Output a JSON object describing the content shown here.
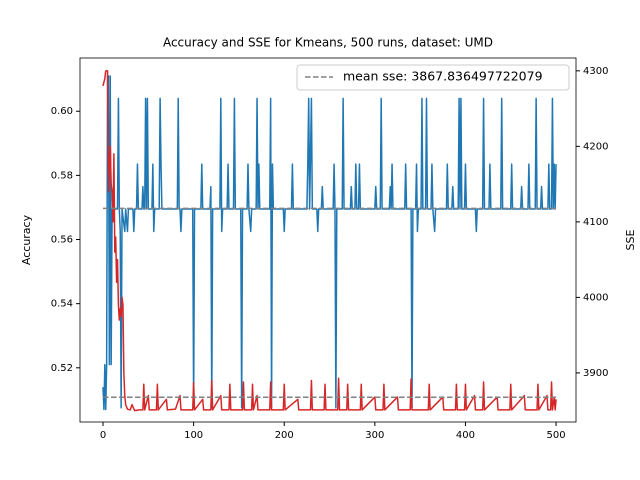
{
  "chart_data": {
    "type": "line",
    "title": "Accuracy and SSE for Kmeans, 500 runs, dataset: UMD",
    "ylabel": "Accuracy",
    "y2label": "SSE",
    "xlim": [
      -25.4,
      522
    ],
    "xticks": [
      0,
      100,
      200,
      300,
      400,
      500
    ],
    "ylim": [
      0.5031,
      0.6166
    ],
    "yticks": [
      0.52,
      0.54,
      0.56,
      0.58,
      {
        "value": 0.6,
        "label": "0.60"
      }
    ],
    "y2lim": [
      3835,
      4317
    ],
    "y2ticks": [
      3900,
      4000,
      4100,
      4200,
      4300
    ],
    "series": [
      {
        "color": "#1f77b4",
        "x": [
          0,
          1,
          2,
          3,
          4,
          5,
          6,
          7,
          8,
          9,
          10,
          16,
          17,
          18,
          19,
          20,
          21,
          24,
          25,
          27,
          28,
          33,
          34,
          35,
          37,
          38,
          39,
          43,
          44,
          45,
          46,
          47,
          48,
          49,
          50,
          54,
          55,
          56,
          57,
          62,
          63,
          64,
          65,
          82,
          83,
          84,
          85,
          86,
          87,
          99,
          100,
          101,
          108,
          109,
          110,
          118,
          119,
          120,
          121,
          129,
          130,
          131,
          132,
          137,
          138,
          139,
          144,
          145,
          146,
          152,
          153,
          154,
          159,
          160,
          161,
          163,
          164,
          169,
          170,
          171,
          172,
          173,
          184,
          185,
          186,
          187,
          188,
          199,
          200,
          201,
          208,
          209,
          210,
          225,
          226,
          227,
          228,
          230,
          231,
          236,
          237,
          238,
          241,
          242,
          243,
          254,
          255,
          256,
          257,
          258,
          264,
          265,
          266,
          273,
          274,
          275,
          278,
          279,
          280,
          282,
          283,
          284,
          300,
          301,
          302,
          306,
          307,
          308,
          316,
          317,
          318,
          319,
          320,
          333,
          334,
          335,
          340,
          341,
          342,
          345,
          346,
          347,
          348,
          351,
          352,
          353,
          356,
          357,
          358,
          362,
          363,
          364,
          366,
          367,
          379,
          380,
          381,
          385,
          386,
          387,
          392,
          393,
          394,
          395,
          396,
          399,
          400,
          401,
          411,
          412,
          413,
          419,
          420,
          421,
          426,
          427,
          428,
          439,
          440,
          441,
          450,
          451,
          452,
          461,
          462,
          463,
          469,
          470,
          471,
          477,
          478,
          479,
          483,
          484,
          485,
          491,
          492,
          493,
          495,
          496,
          497,
          498,
          499,
          500
        ],
        "values": [
          0.514,
          0.507,
          0.521,
          0.507,
          0.521,
          0.611,
          0.611,
          0.521,
          0.611,
          0.521,
          0.5695,
          0.5695,
          0.604,
          0.5695,
          0.5625,
          0.5075,
          0.5695,
          0.5625,
          0.5695,
          0.5625,
          0.5695,
          0.5695,
          0.5625,
          0.5695,
          0.5695,
          0.5835,
          0.5695,
          0.5695,
          0.5765,
          0.5695,
          0.5695,
          0.604,
          0.5695,
          0.604,
          0.5695,
          0.5695,
          0.5835,
          0.5625,
          0.5695,
          0.5695,
          0.604,
          0.5835,
          0.5695,
          0.5695,
          0.604,
          0.5695,
          0.5695,
          0.5625,
          0.5695,
          0.5695,
          0.5075,
          0.5695,
          0.5695,
          0.5835,
          0.5695,
          0.5695,
          0.5765,
          0.5075,
          0.5695,
          0.5695,
          0.604,
          0.5625,
          0.5695,
          0.5695,
          0.5835,
          0.5695,
          0.5695,
          0.604,
          0.5695,
          0.5695,
          0.5075,
          0.5695,
          0.5695,
          0.5835,
          0.5695,
          0.5625,
          0.5695,
          0.5695,
          0.604,
          0.5695,
          0.5835,
          0.5695,
          0.5695,
          0.604,
          0.5075,
          0.5835,
          0.5695,
          0.5695,
          0.5625,
          0.5695,
          0.5695,
          0.5835,
          0.5695,
          0.5695,
          0.5835,
          0.604,
          0.5695,
          0.604,
          0.5695,
          0.5695,
          0.5625,
          0.5695,
          0.5695,
          0.5765,
          0.5695,
          0.5695,
          0.5835,
          0.5695,
          0.5075,
          0.5695,
          0.5695,
          0.604,
          0.5695,
          0.5695,
          0.5765,
          0.5695,
          0.5695,
          0.5835,
          0.5695,
          0.5695,
          0.5835,
          0.5695,
          0.5695,
          0.5765,
          0.5695,
          0.5695,
          0.604,
          0.5695,
          0.5695,
          0.5765,
          0.5695,
          0.5835,
          0.5695,
          0.5695,
          0.5835,
          0.5695,
          0.5695,
          0.5075,
          0.5695,
          0.5695,
          0.5835,
          0.5625,
          0.5695,
          0.5695,
          0.604,
          0.5695,
          0.5695,
          0.604,
          0.5695,
          0.5695,
          0.5835,
          0.5695,
          0.5625,
          0.5695,
          0.5695,
          0.5835,
          0.5695,
          0.5695,
          0.5765,
          0.5695,
          0.5695,
          0.604,
          0.5695,
          0.604,
          0.5695,
          0.5695,
          0.5835,
          0.5695,
          0.5695,
          0.5625,
          0.5695,
          0.5695,
          0.604,
          0.5695,
          0.5695,
          0.5835,
          0.5695,
          0.5695,
          0.604,
          0.5695,
          0.5695,
          0.5835,
          0.5695,
          0.5695,
          0.5765,
          0.5695,
          0.5695,
          0.5835,
          0.5695,
          0.5695,
          0.604,
          0.5695,
          0.5695,
          0.5765,
          0.5695,
          0.5695,
          0.5835,
          0.5695,
          0.5695,
          0.604,
          0.5695,
          0.5835,
          0.5695,
          0.5835
        ]
      },
      {
        "color": "#d62728",
        "axis": "y2",
        "x": [
          0,
          2,
          3,
          5,
          6,
          7,
          8,
          9,
          10,
          11,
          12,
          13,
          14,
          15,
          16,
          17,
          18,
          19,
          20,
          21,
          22,
          23,
          24,
          25,
          27,
          30,
          32,
          35,
          40,
          44,
          45,
          46,
          50,
          51,
          59,
          60,
          61,
          70,
          71,
          80,
          85,
          86,
          99,
          100,
          101,
          110,
          111,
          119,
          120,
          121,
          130,
          131,
          139,
          140,
          141,
          154,
          155,
          156,
          164,
          165,
          166,
          170,
          171,
          184,
          185,
          186,
          199,
          200,
          201,
          215,
          216,
          229,
          230,
          231,
          244,
          245,
          246,
          259,
          260,
          261,
          269,
          270,
          271,
          284,
          285,
          286,
          300,
          301,
          309,
          310,
          311,
          325,
          326,
          339,
          340,
          341,
          359,
          360,
          361,
          375,
          376,
          389,
          390,
          391,
          399,
          400,
          401,
          410,
          411,
          419,
          420,
          421,
          435,
          436,
          449,
          450,
          451,
          465,
          466,
          479,
          480,
          481,
          490,
          491,
          494,
          495,
          496,
          498,
          499,
          500
        ],
        "values": [
          4280,
          4290,
          4300,
          4300,
          4140,
          4180,
          4200,
          4150,
          4140,
          4100,
          4190,
          4060,
          4080,
          4020,
          4050,
          3990,
          3970,
          3985,
          3975,
          4000,
          3990,
          3900,
          3870,
          3858,
          3852,
          3851,
          3858,
          3850,
          3851,
          3851,
          3885,
          3851,
          3870,
          3851,
          3851,
          3885,
          3851,
          3865,
          3851,
          3852,
          3870,
          3851,
          3851,
          3887,
          3851,
          3865,
          3851,
          3851,
          3890,
          3851,
          3870,
          3851,
          3851,
          3885,
          3851,
          3851,
          3888,
          3851,
          3851,
          3885,
          3851,
          3870,
          3851,
          3851,
          3888,
          3851,
          3851,
          3885,
          3851,
          3865,
          3851,
          3851,
          3890,
          3851,
          3851,
          3885,
          3851,
          3851,
          3893,
          3851,
          3851,
          3885,
          3851,
          3851,
          3885,
          3851,
          3868,
          3851,
          3851,
          3885,
          3851,
          3868,
          3851,
          3851,
          3892,
          3851,
          3851,
          3885,
          3851,
          3868,
          3851,
          3851,
          3885,
          3851,
          3851,
          3885,
          3851,
          3870,
          3851,
          3851,
          3888,
          3851,
          3868,
          3851,
          3851,
          3885,
          3851,
          3870,
          3851,
          3851,
          3885,
          3851,
          3870,
          3851,
          3851,
          3888,
          3851,
          3868,
          3851,
          3865
        ]
      }
    ],
    "mean_lines": [
      {
        "value": 0.5697,
        "color": "#808080"
      },
      {
        "name": "mean sse: 3867.836497722079",
        "value": 3867.836497722079,
        "axis": "y2",
        "color": "#808080"
      }
    ]
  }
}
